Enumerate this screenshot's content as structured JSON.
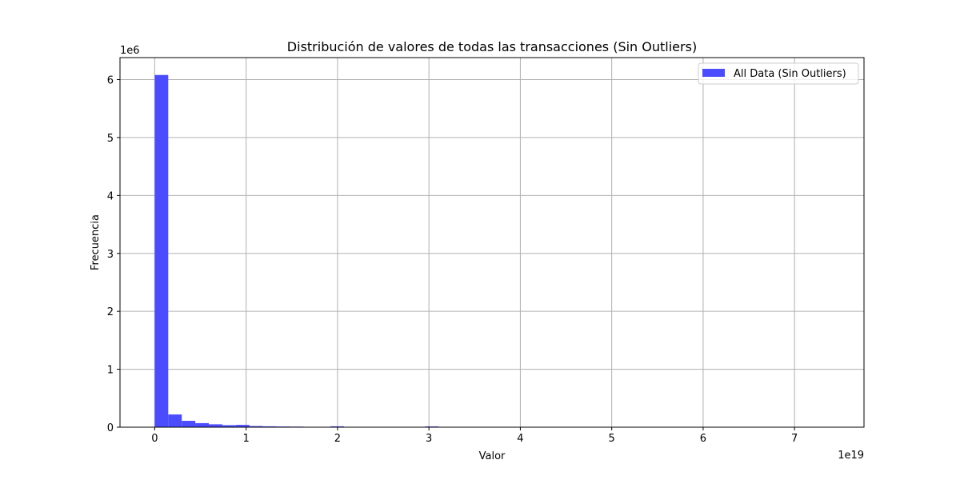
{
  "chart_data": {
    "type": "bar",
    "title": "Distribución de valores de todas las transacciones (Sin Outliers)",
    "xlabel": "Valor",
    "ylabel": "Frecuencia",
    "x_offset_label": "1e19",
    "y_offset_label": "1e6",
    "xlim": [
      -0.38,
      7.76
    ],
    "ylim": [
      0,
      6.38
    ],
    "x_ticks": [
      0,
      1,
      2,
      3,
      4,
      5,
      6,
      7
    ],
    "y_ticks": [
      0,
      1,
      2,
      3,
      4,
      5,
      6
    ],
    "grid": true,
    "legend": {
      "position": "top-right",
      "entries": [
        "All Data (Sin Outliers)"
      ]
    },
    "colors": {
      "bars": "#4c4cff",
      "grid": "#b0b0b0"
    },
    "bin_width": 0.1479,
    "series": [
      {
        "name": "All Data (Sin Outliers)",
        "bins_start": [
          0.0,
          0.1479,
          0.2958,
          0.4437,
          0.5916,
          0.7395,
          0.8874,
          1.0353,
          1.1832,
          1.3311,
          1.479,
          1.9227,
          2.958
        ],
        "values": [
          6.08,
          0.22,
          0.11,
          0.07,
          0.05,
          0.035,
          0.04,
          0.02,
          0.015,
          0.012,
          0.01,
          0.015,
          0.013
        ]
      }
    ]
  }
}
